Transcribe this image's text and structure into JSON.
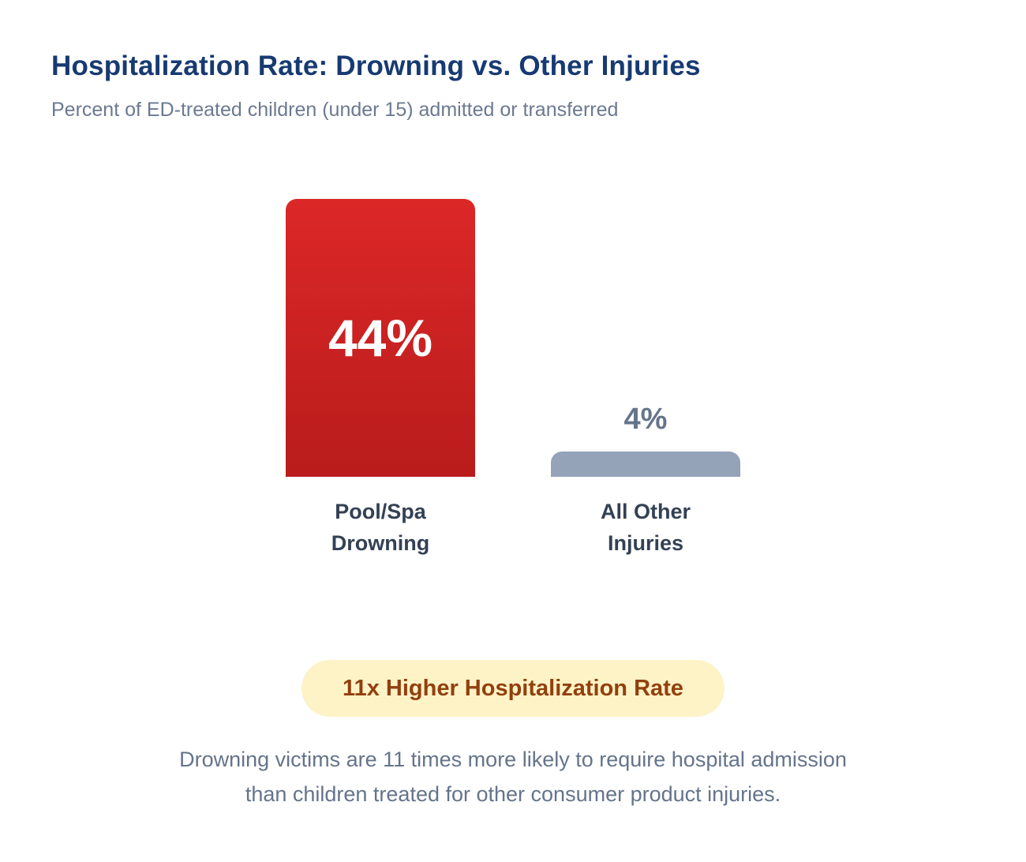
{
  "header": {
    "title": "Hospitalization Rate: Drowning vs. Other Injuries",
    "subtitle": "Percent of ED-treated children (under 15) admitted or transferred"
  },
  "bars": [
    {
      "label_line1": "Pool/Spa",
      "label_line2": "Drowning",
      "value_label": "44%",
      "color": "#dc2626"
    },
    {
      "label_line1": "All Other",
      "label_line2": "Injuries",
      "value_label": "4%",
      "color": "#94a3b8"
    }
  ],
  "badge": {
    "text": "11x Higher Hospitalization Rate",
    "bg": "#fef3c7",
    "color": "#92400e"
  },
  "note": {
    "line1": "Drowning victims are 11 times more likely to require hospital admission",
    "line2": "than children treated for other consumer product injuries."
  },
  "chart_data": {
    "type": "bar",
    "title": "Hospitalization Rate: Drowning vs. Other Injuries",
    "subtitle": "Percent of ED-treated children (under 15) admitted or transferred",
    "categories": [
      "Pool/Spa Drowning",
      "All Other Injuries"
    ],
    "values": [
      44,
      4
    ],
    "unit": "%",
    "xlabel": "",
    "ylabel": "",
    "grid": false,
    "legend": "none",
    "annotations": [
      "11x Higher Hospitalization Rate"
    ]
  }
}
